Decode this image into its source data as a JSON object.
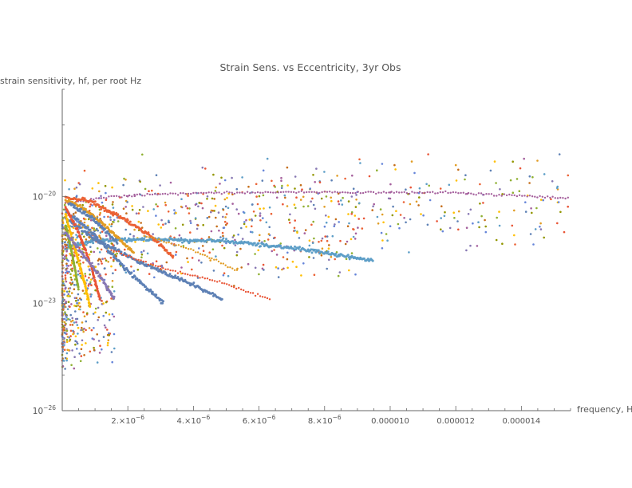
{
  "chart_data": {
    "type": "scatter",
    "title": "Strain Sens. vs Eccentricity, 3yr Obs",
    "xlabel": "frequency, Hz",
    "ylabel": "strain sensitivity, hf, per root Hz",
    "x_scale": "linear",
    "y_scale": "log",
    "xlim": [
      0,
      1.55e-05
    ],
    "ylim": [
      1e-26,
      1e-17
    ],
    "x_ticks": [
      {
        "value": 2e-06,
        "mantissa": "2.×10",
        "exp": "−6"
      },
      {
        "value": 4e-06,
        "mantissa": "4.×10",
        "exp": "−6"
      },
      {
        "value": 6e-06,
        "mantissa": "6.×10",
        "exp": "−6"
      },
      {
        "value": 8e-06,
        "mantissa": "8.×10",
        "exp": "−6"
      },
      {
        "value": 1e-05,
        "text": "0.000010"
      },
      {
        "value": 1.2e-05,
        "text": "0.000012"
      },
      {
        "value": 1.4e-05,
        "text": "0.000014"
      }
    ],
    "y_ticks": [
      {
        "value": 1e-20,
        "mantissa": "10",
        "exp": "−20"
      },
      {
        "value": 1e-23,
        "mantissa": "10",
        "exp": "−23"
      },
      {
        "value": 1e-26,
        "mantissa": "10",
        "exp": "−26"
      }
    ],
    "palette": [
      "#5e81b5",
      "#e19c24",
      "#8fb032",
      "#eb6235",
      "#8778b3",
      "#c56e1a",
      "#5d9ec7",
      "#ffbf00",
      "#a5609d",
      "#929600",
      "#e95536",
      "#6685d9"
    ],
    "tracks": [
      {
        "color": "#a5609d",
        "dashed": true,
        "points": [
          [
            1e-07,
            -20.2
          ],
          [
            1.5e-06,
            -20.0
          ],
          [
            4e-06,
            -19.9
          ],
          [
            8e-06,
            -19.88
          ],
          [
            1.2e-05,
            -19.9
          ],
          [
            1.55e-05,
            -20.05
          ]
        ]
      },
      {
        "color": "#5d9ec7",
        "points": [
          [
            2e-07,
            -21.4
          ],
          [
            1e-06,
            -21.25
          ],
          [
            2.5e-06,
            -21.2
          ],
          [
            5e-06,
            -21.25
          ],
          [
            7.5e-06,
            -21.5
          ],
          [
            9.5e-06,
            -21.8
          ]
        ]
      },
      {
        "color": "#5e81b5",
        "points": [
          [
            1e-07,
            -20.6
          ],
          [
            1e-06,
            -21.2
          ],
          [
            2.5e-06,
            -21.9
          ],
          [
            3.8e-06,
            -22.4
          ],
          [
            4.9e-06,
            -22.9
          ]
        ]
      },
      {
        "color": "#eb6235",
        "points": [
          [
            1e-07,
            -20.05
          ],
          [
            8e-07,
            -20.1
          ],
          [
            1.8e-06,
            -20.6
          ],
          [
            2.7e-06,
            -21.1
          ],
          [
            3.4e-06,
            -21.7
          ]
        ]
      },
      {
        "color": "#e95536",
        "dashed": true,
        "points": [
          [
            1.5e-06,
            -21.5
          ],
          [
            3e-06,
            -22.0
          ],
          [
            4.8e-06,
            -22.4
          ],
          [
            6.4e-06,
            -22.9
          ]
        ]
      },
      {
        "color": "#e19c24",
        "dashed": true,
        "points": [
          [
            2.5e-06,
            -21.1
          ],
          [
            4e-06,
            -21.5
          ],
          [
            5.4e-06,
            -22.1
          ]
        ]
      },
      {
        "color": "#5e81b5",
        "points": [
          [
            1e-07,
            -20.4
          ],
          [
            9e-07,
            -21.0
          ],
          [
            1.9e-06,
            -22.0
          ],
          [
            2.5e-06,
            -22.5
          ],
          [
            3.1e-06,
            -23.0
          ]
        ]
      },
      {
        "color": "#e95536",
        "points": [
          [
            1e-07,
            -20.3
          ],
          [
            5e-07,
            -21.0
          ],
          [
            9e-07,
            -22.0
          ],
          [
            1.15e-06,
            -22.9
          ]
        ]
      },
      {
        "color": "#ffbf00",
        "points": [
          [
            1e-07,
            -20.5
          ],
          [
            4e-07,
            -21.5
          ],
          [
            7e-07,
            -22.5
          ],
          [
            8.5e-07,
            -23.1
          ]
        ]
      },
      {
        "color": "#8fb032",
        "points": [
          [
            1e-07,
            -20.8
          ],
          [
            3e-07,
            -21.6
          ],
          [
            5e-07,
            -22.6
          ]
        ]
      },
      {
        "color": "#8778b3",
        "points": [
          [
            1e-07,
            -21.0
          ],
          [
            6e-07,
            -21.6
          ],
          [
            1.2e-06,
            -22.3
          ],
          [
            1.6e-06,
            -22.9
          ]
        ]
      },
      {
        "color": "#e19c24",
        "points": [
          [
            1e-07,
            -20.1
          ],
          [
            6e-07,
            -20.3
          ],
          [
            1.4e-06,
            -20.9
          ],
          [
            2.2e-06,
            -21.6
          ]
        ]
      },
      {
        "color": "#5e81b5",
        "points": [
          [
            2e-07,
            -20.2
          ],
          [
            9e-07,
            -20.6
          ],
          [
            1.7e-06,
            -21.3
          ]
        ]
      }
    ],
    "scatter_cloud": {
      "points": 1300,
      "distribution": "dense near low frequency and y≈1e-20 to 1e-23, sparse to 1.55e-5"
    }
  }
}
